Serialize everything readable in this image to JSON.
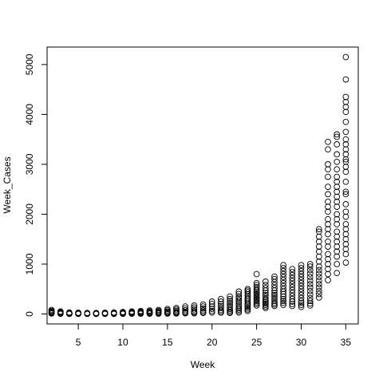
{
  "chart_data": {
    "type": "scatter",
    "title": "",
    "xlabel": "Week",
    "ylabel": "Week_Cases",
    "xlim": [
      1.5,
      36.4
    ],
    "ylim": [
      -200,
      5350
    ],
    "xticks": [
      5,
      10,
      15,
      20,
      25,
      30,
      35
    ],
    "yticks": [
      0,
      1000,
      2000,
      3000,
      4000,
      5000
    ],
    "grid": false,
    "legend": "none",
    "marker": "open-circle",
    "color": "#000000",
    "series": [
      {
        "x": [
          2,
          2,
          2,
          2,
          2,
          2,
          3,
          3,
          3,
          3,
          3,
          3,
          4,
          4,
          4,
          4,
          4,
          4,
          5,
          5,
          5,
          5,
          5,
          5,
          6,
          6,
          6,
          6,
          6,
          6,
          7,
          7,
          7,
          7,
          7,
          7,
          8,
          8,
          8,
          8,
          8,
          8,
          9,
          9,
          9,
          9,
          9,
          9,
          10,
          10,
          10,
          10,
          10,
          10,
          11,
          11,
          11,
          11,
          11,
          11,
          12,
          12,
          12,
          12,
          12,
          12,
          13,
          13,
          13,
          13,
          13,
          13,
          14,
          14,
          14,
          14,
          14,
          14,
          15,
          15,
          15,
          15,
          15,
          15,
          16,
          16,
          16,
          16,
          16,
          16,
          17,
          17,
          17,
          17,
          17,
          17,
          18,
          18,
          18,
          18,
          18,
          18,
          19,
          19,
          19,
          19,
          19,
          19,
          20,
          20,
          20,
          20,
          20,
          20,
          21,
          21,
          21,
          21,
          21,
          21,
          21,
          21,
          22,
          22,
          22,
          22,
          22,
          22,
          22,
          22,
          22,
          22,
          23,
          23,
          23,
          23,
          23,
          23,
          23,
          23,
          23,
          23,
          23,
          23,
          24,
          24,
          24,
          24,
          24,
          24,
          24,
          24,
          24,
          24,
          24,
          24,
          24,
          24,
          25,
          25,
          25,
          25,
          25,
          25,
          25,
          25,
          25,
          25,
          25,
          25,
          25,
          25,
          25,
          25,
          26,
          26,
          26,
          26,
          26,
          26,
          26,
          26,
          26,
          26,
          26,
          26,
          26,
          26,
          27,
          27,
          27,
          27,
          27,
          27,
          27,
          27,
          27,
          27,
          27,
          27,
          27,
          27,
          28,
          28,
          28,
          28,
          28,
          28,
          28,
          28,
          28,
          28,
          28,
          28,
          28,
          28,
          28,
          28,
          29,
          29,
          29,
          29,
          29,
          29,
          29,
          29,
          29,
          29,
          29,
          29,
          29,
          29,
          30,
          30,
          30,
          30,
          30,
          30,
          30,
          30,
          30,
          30,
          30,
          30,
          30,
          30,
          30,
          30,
          31,
          31,
          31,
          31,
          31,
          31,
          31,
          31,
          31,
          31,
          31,
          31,
          31,
          31,
          32,
          32,
          32,
          32,
          32,
          32,
          32,
          32,
          32,
          32,
          32,
          32,
          32,
          32,
          32,
          32,
          32,
          32,
          33,
          33,
          33,
          33,
          33,
          33,
          33,
          33,
          33,
          33,
          33,
          33,
          33,
          33,
          33,
          33,
          33,
          33,
          33,
          33,
          33,
          33,
          34,
          34,
          34,
          34,
          34,
          34,
          34,
          34,
          34,
          34,
          34,
          34,
          34,
          34,
          34,
          34,
          34,
          34,
          34,
          34,
          34,
          34,
          34,
          34,
          35,
          35,
          35,
          35,
          35,
          35,
          35,
          35,
          35,
          35,
          35,
          35,
          35,
          35,
          35,
          35,
          35,
          35,
          35,
          35,
          35,
          35,
          35,
          35,
          35,
          35,
          35,
          35,
          35,
          35
        ],
        "y": [
          80,
          60,
          45,
          30,
          20,
          10,
          50,
          35,
          25,
          15,
          8,
          3,
          30,
          20,
          15,
          10,
          5,
          2,
          25,
          18,
          12,
          8,
          4,
          1,
          20,
          15,
          10,
          6,
          3,
          1,
          20,
          14,
          10,
          6,
          3,
          1,
          25,
          18,
          12,
          8,
          4,
          2,
          30,
          22,
          15,
          10,
          5,
          2,
          40,
          30,
          20,
          12,
          6,
          3,
          50,
          38,
          25,
          15,
          8,
          4,
          60,
          45,
          30,
          18,
          10,
          5,
          70,
          52,
          35,
          22,
          12,
          6,
          80,
          60,
          40,
          25,
          14,
          7,
          100,
          75,
          50,
          30,
          16,
          8,
          120,
          90,
          60,
          38,
          20,
          10,
          150,
          110,
          75,
          45,
          25,
          12,
          170,
          130,
          90,
          55,
          30,
          15,
          190,
          150,
          110,
          70,
          40,
          20,
          250,
          200,
          150,
          100,
          60,
          30,
          300,
          250,
          200,
          160,
          120,
          80,
          50,
          25,
          350,
          300,
          260,
          220,
          180,
          140,
          100,
          70,
          40,
          20,
          450,
          400,
          350,
          320,
          280,
          240,
          200,
          160,
          120,
          90,
          60,
          30,
          500,
          470,
          440,
          400,
          360,
          320,
          290,
          250,
          210,
          180,
          150,
          120,
          90,
          60,
          800,
          620,
          580,
          540,
          500,
          470,
          440,
          410,
          380,
          350,
          320,
          290,
          260,
          230,
          200,
          170,
          650,
          580,
          520,
          470,
          420,
          380,
          340,
          300,
          270,
          240,
          210,
          180,
          150,
          120,
          750,
          700,
          640,
          580,
          520,
          470,
          420,
          380,
          340,
          300,
          260,
          220,
          190,
          160,
          980,
          920,
          860,
          800,
          740,
          680,
          620,
          560,
          500,
          450,
          400,
          350,
          300,
          260,
          220,
          180,
          900,
          840,
          780,
          720,
          660,
          600,
          540,
          480,
          420,
          360,
          300,
          250,
          200,
          160,
          980,
          920,
          860,
          800,
          740,
          680,
          620,
          560,
          500,
          440,
          380,
          320,
          260,
          220,
          180,
          140,
          1000,
          950,
          880,
          810,
          740,
          670,
          600,
          530,
          460,
          390,
          320,
          260,
          210,
          170,
          1700,
          1650,
          1550,
          1450,
          1350,
          1250,
          1150,
          1050,
          950,
          880,
          810,
          740,
          670,
          600,
          530,
          460,
          400,
          330,
          3450,
          3300,
          3000,
          2900,
          2750,
          2550,
          2400,
          2250,
          2150,
          2050,
          1900,
          1800,
          1700,
          1600,
          1450,
          1350,
          1200,
          1100,
          1000,
          900,
          800,
          680,
          3600,
          3550,
          3400,
          3200,
          3050,
          2900,
          2750,
          2650,
          2550,
          2450,
          2350,
          2250,
          2150,
          2000,
          1900,
          1800,
          1650,
          1550,
          1450,
          1350,
          1250,
          1150,
          1000,
          820,
          5150,
          4700,
          4350,
          4250,
          4150,
          4050,
          3850,
          3650,
          3500,
          3400,
          3300,
          3200,
          3100,
          3050,
          2950,
          2850,
          2650,
          2450,
          2400,
          2200,
          2050,
          1950,
          1800,
          1700,
          1600,
          1500,
          1400,
          1300,
          1200,
          1030
        ]
      }
    ]
  }
}
